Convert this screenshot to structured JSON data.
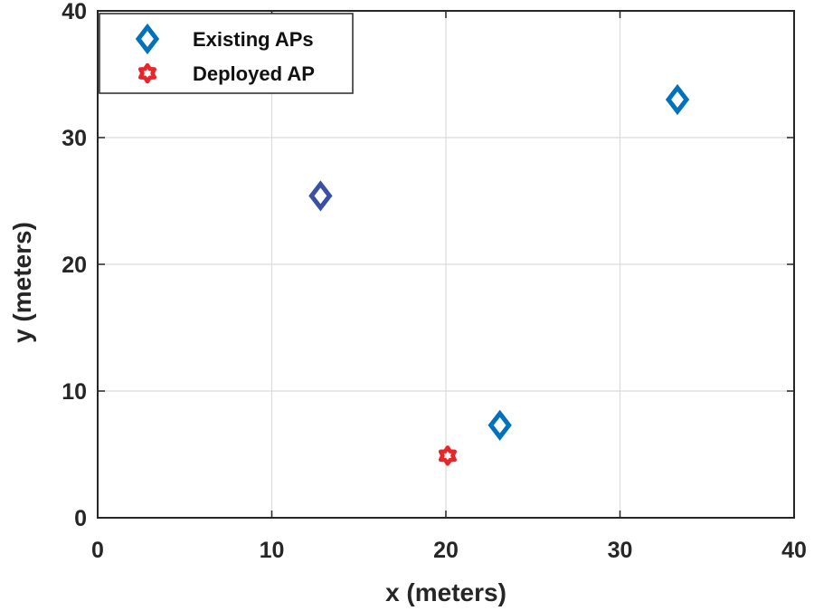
{
  "chart_data": {
    "type": "scatter",
    "xlabel": "x (meters)",
    "ylabel": "y (meters)",
    "xlim": [
      0,
      40
    ],
    "ylim": [
      0,
      40
    ],
    "xticks": [
      "0",
      "10",
      "20",
      "30",
      "40"
    ],
    "yticks": [
      "0",
      "10",
      "20",
      "30",
      "40"
    ],
    "grid": true,
    "legend_position": "top-left",
    "series": [
      {
        "name": "Existing APs",
        "marker": "diamond",
        "color": "#0072BD",
        "points": [
          {
            "x": 12.8,
            "y": 25.4,
            "color": "#3A4FA6"
          },
          {
            "x": 23.1,
            "y": 7.3
          },
          {
            "x": 33.3,
            "y": 33.0
          }
        ]
      },
      {
        "name": "Deployed AP",
        "marker": "hexagram",
        "color": "#E8262A",
        "points": [
          {
            "x": 20.1,
            "y": 4.9
          }
        ]
      }
    ]
  }
}
